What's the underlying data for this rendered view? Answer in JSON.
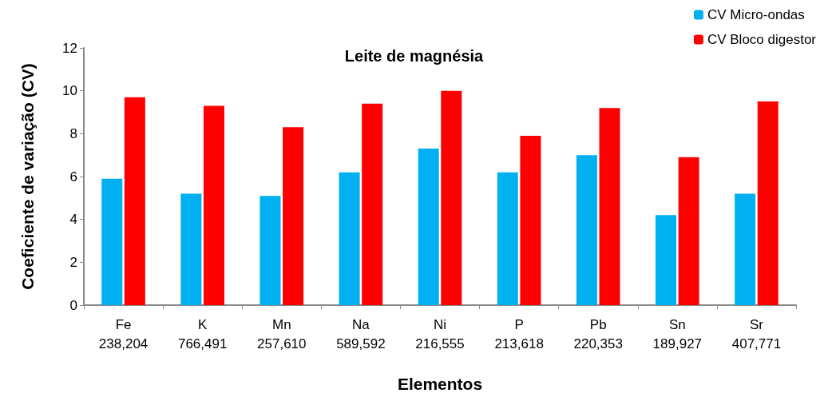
{
  "chart_data": {
    "type": "bar",
    "title": "Leite de magnésia",
    "xlabel": "Elementos",
    "ylabel": "Coeficiente de variação (CV)",
    "categories": [
      "Fe\n238,204",
      "K\n766,491",
      "Mn\n257,610",
      "Na\n589,592",
      "Ni\n216,555",
      "P\n213,618",
      "Pb\n220,353",
      "Sn\n189,927",
      "Sr\n407,771"
    ],
    "series": [
      {
        "name": "CV Micro-ondas",
        "color": "#00b0f0",
        "values": [
          5.9,
          5.2,
          5.1,
          6.2,
          7.3,
          6.2,
          7.0,
          4.2,
          5.2
        ]
      },
      {
        "name": "CV Bloco digestor",
        "color": "#ff0000",
        "values": [
          9.7,
          9.3,
          8.3,
          9.4,
          10.0,
          7.9,
          9.2,
          6.9,
          9.5
        ]
      }
    ],
    "ylim": [
      0,
      12
    ],
    "yticks": [
      0,
      2,
      4,
      6,
      8,
      10,
      12
    ],
    "grid": false,
    "legend": "top right"
  }
}
